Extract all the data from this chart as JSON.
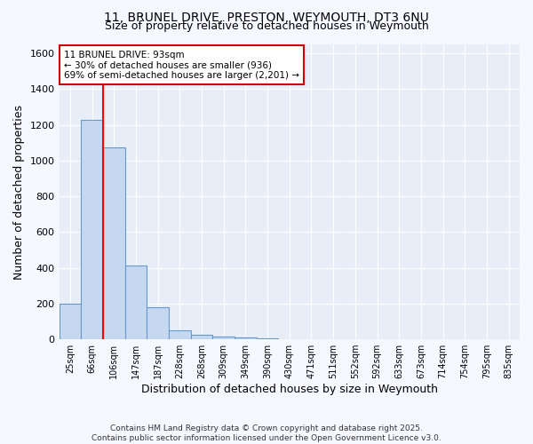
{
  "title_line1": "11, BRUNEL DRIVE, PRESTON, WEYMOUTH, DT3 6NU",
  "title_line2": "Size of property relative to detached houses in Weymouth",
  "xlabel": "Distribution of detached houses by size in Weymouth",
  "ylabel": "Number of detached properties",
  "bin_labels": [
    "25sqm",
    "66sqm",
    "106sqm",
    "147sqm",
    "187sqm",
    "228sqm",
    "268sqm",
    "309sqm",
    "349sqm",
    "390sqm",
    "430sqm",
    "471sqm",
    "511sqm",
    "552sqm",
    "592sqm",
    "633sqm",
    "673sqm",
    "714sqm",
    "754sqm",
    "795sqm",
    "835sqm"
  ],
  "counts": [
    200,
    1230,
    1075,
    415,
    180,
    50,
    25,
    15,
    10,
    5,
    0,
    0,
    0,
    0,
    0,
    0,
    0,
    0,
    0,
    0,
    0
  ],
  "bar_color": "#c5d8f0",
  "bar_edge_color": "#6699cc",
  "red_line_bin": 2,
  "ylim": [
    0,
    1650
  ],
  "yticks": [
    0,
    200,
    400,
    600,
    800,
    1000,
    1200,
    1400,
    1600
  ],
  "annotation_title": "11 BRUNEL DRIVE: 93sqm",
  "annotation_line2": "← 30% of detached houses are smaller (936)",
  "annotation_line3": "69% of semi-detached houses are larger (2,201) →",
  "annotation_box_color": "#ffffff",
  "annotation_border_color": "#cc0000",
  "fig_bg_color": "#f5f8ff",
  "ax_bg_color": "#e8eef8",
  "grid_color": "#ffffff",
  "footer_line1": "Contains HM Land Registry data © Crown copyright and database right 2025.",
  "footer_line2": "Contains public sector information licensed under the Open Government Licence v3.0."
}
